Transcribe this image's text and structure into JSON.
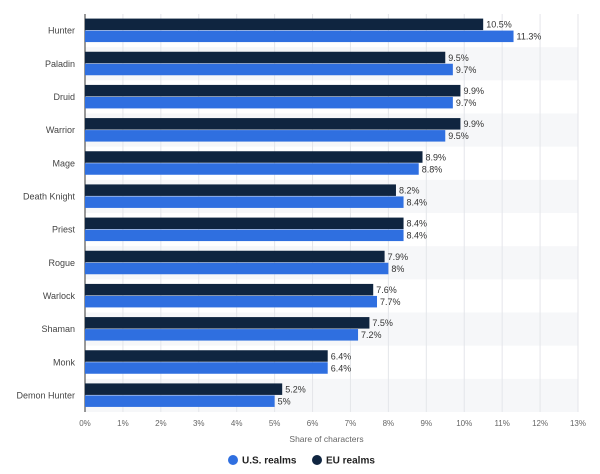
{
  "chart_data": {
    "type": "bar",
    "orientation": "horizontal",
    "categories": [
      "Hunter",
      "Paladin",
      "Druid",
      "Warrior",
      "Mage",
      "Death Knight",
      "Priest",
      "Rogue",
      "Warlock",
      "Shaman",
      "Monk",
      "Demon Hunter"
    ],
    "series": [
      {
        "name": "EU realms",
        "color": "#0f2540",
        "values": [
          10.5,
          9.5,
          9.9,
          9.9,
          8.9,
          8.2,
          8.4,
          7.9,
          7.6,
          7.5,
          6.4,
          5.2
        ],
        "labels": [
          "10.5%",
          "9.5%",
          "9.9%",
          "9.9%",
          "8.9%",
          "8.2%",
          "8.4%",
          "7.9%",
          "7.6%",
          "7.5%",
          "6.4%",
          "5.2%"
        ]
      },
      {
        "name": "U.S. realms",
        "color": "#2f6fe0",
        "values": [
          11.3,
          9.7,
          9.7,
          9.5,
          8.8,
          8.4,
          8.4,
          8,
          7.7,
          7.2,
          6.4,
          5
        ],
        "labels": [
          "11.3%",
          "9.7%",
          "9.7%",
          "9.5%",
          "8.8%",
          "8.4%",
          "8.4%",
          "8%",
          "7.7%",
          "7.2%",
          "6.4%",
          "5%"
        ]
      }
    ],
    "xlabel": "Share of characters",
    "xlim": [
      0,
      13
    ],
    "xticks": [
      "0%",
      "1%",
      "2%",
      "3%",
      "4%",
      "5%",
      "6%",
      "7%",
      "8%",
      "9%",
      "10%",
      "11%",
      "12%",
      "13%"
    ],
    "grid": true,
    "legend": {
      "position": "bottom-center",
      "items": [
        "U.S. realms",
        "EU realms"
      ]
    }
  }
}
